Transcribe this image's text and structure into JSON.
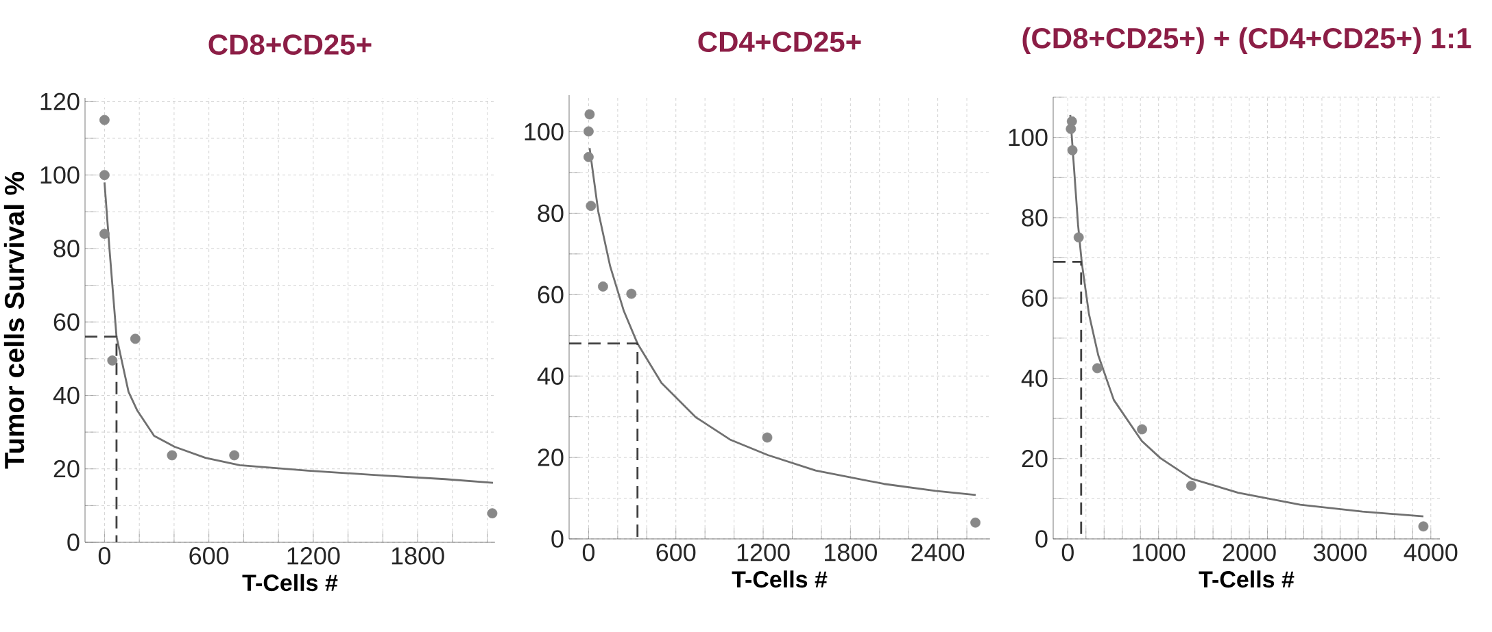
{
  "chart_data": [
    {
      "type": "scatter",
      "title": "CD8+CD25+",
      "xlabel": "T-Cells #",
      "ylabel": "Tumor cells Survival %",
      "xlim": [
        -112,
        2245
      ],
      "ylim": [
        0,
        121
      ],
      "grid": true,
      "xticks": [
        0,
        {
          "value": 200,
          "label": null
        },
        {
          "value": 400,
          "label": null
        },
        600,
        {
          "value": 800,
          "label": null
        },
        {
          "value": 1000,
          "label": null
        },
        1200,
        {
          "value": 1400,
          "label": null
        },
        {
          "value": 1600,
          "label": null
        },
        1800,
        {
          "value": 2000,
          "label": null
        },
        {
          "value": 2200,
          "label": null
        }
      ],
      "yticks": [
        0,
        {
          "value": 10,
          "label": null
        },
        20,
        {
          "value": 30,
          "label": null
        },
        40,
        {
          "value": 50,
          "label": null
        },
        60,
        {
          "value": 70,
          "label": null
        },
        80,
        {
          "value": 90,
          "label": null
        },
        100,
        {
          "value": 110,
          "label": null
        },
        120
      ],
      "series": [
        {
          "marker": "circle",
          "color": "#888888",
          "x": [
            0,
            0,
            0,
            45,
            177,
            388,
            746,
            2229
          ],
          "values": [
            115,
            100,
            84,
            49.5,
            55.4,
            23.7,
            23.7,
            7.9
          ]
        },
        {
          "type": "line",
          "marker": "none",
          "color": "#707070",
          "x": [
            0,
            30,
            69,
            138,
            187,
            285,
            403,
            580,
            777,
            1170,
            1564,
            1957,
            2233
          ],
          "values": [
            98,
            79,
            56,
            41,
            36,
            29,
            26,
            23,
            21,
            19.5,
            18.3,
            17.2,
            16.2
          ]
        },
        {
          "type": "line",
          "marker": "none",
          "line_style": "dashed",
          "color": "#404040",
          "x": [
            -112,
            69,
            69
          ],
          "values": [
            56,
            56,
            0
          ]
        }
      ]
    },
    {
      "type": "scatter",
      "title": "CD4+CD25+",
      "xlabel": "T-Cells #",
      "xlim": [
        -134,
        2760
      ],
      "ylim": [
        0,
        109
      ],
      "grid": true,
      "xticks": [
        0,
        {
          "value": 200,
          "label": null
        },
        {
          "value": 400,
          "label": null
        },
        600,
        {
          "value": 800,
          "label": null
        },
        {
          "value": 1000,
          "label": null
        },
        1200,
        {
          "value": 1400,
          "label": null
        },
        {
          "value": 1600,
          "label": null
        },
        1800,
        {
          "value": 2000,
          "label": null
        },
        {
          "value": 2200,
          "label": null
        },
        2400,
        {
          "value": 2600,
          "label": null
        }
      ],
      "yticks": [
        0,
        {
          "value": 10,
          "label": null
        },
        20,
        {
          "value": 30,
          "label": null
        },
        40,
        {
          "value": 50,
          "label": null
        },
        60,
        {
          "value": 70,
          "label": null
        },
        80,
        {
          "value": 90,
          "label": null
        },
        100
      ],
      "series": [
        {
          "marker": "circle",
          "color": "#888888",
          "x": [
            7,
            0,
            0,
            16,
            99,
            294,
            1228,
            2659
          ],
          "values": [
            104.3,
            100.1,
            93.8,
            81.8,
            62,
            60.2,
            24.9,
            4
          ]
        },
        {
          "type": "line",
          "marker": "none",
          "color": "#707070",
          "x": [
            7,
            66,
            148,
            242,
            336,
            501,
            736,
            972,
            1231,
            1560,
            2031,
            2384,
            2661
          ],
          "values": [
            96,
            80.5,
            67,
            56,
            48,
            38.3,
            29.9,
            24.4,
            20.6,
            16.8,
            13.5,
            11.8,
            10.8
          ]
        },
        {
          "type": "line",
          "marker": "none",
          "line_style": "dashed",
          "color": "#404040",
          "x": [
            -134,
            336,
            336
          ],
          "values": [
            48,
            48,
            0
          ]
        }
      ]
    },
    {
      "type": "scatter",
      "title": "(CD8+CD25+) + (CD4+CD25+) 1:1",
      "xlabel": "T-Cells #",
      "xlim": [
        -161,
        4100
      ],
      "ylim": [
        0,
        110
      ],
      "grid": true,
      "xticks": [
        0,
        {
          "value": 200,
          "label": null
        },
        {
          "value": 400,
          "label": null
        },
        {
          "value": 600,
          "label": null
        },
        {
          "value": 800,
          "label": null
        },
        1000,
        {
          "value": 1200,
          "label": null
        },
        {
          "value": 1400,
          "label": null
        },
        {
          "value": 1600,
          "label": null
        },
        {
          "value": 1800,
          "label": null
        },
        2000,
        {
          "value": 2200,
          "label": null
        },
        {
          "value": 2400,
          "label": null
        },
        {
          "value": 2600,
          "label": null
        },
        {
          "value": 2800,
          "label": null
        },
        3000,
        {
          "value": 3200,
          "label": null
        },
        {
          "value": 3400,
          "label": null
        },
        {
          "value": 3600,
          "label": null
        },
        {
          "value": 3800,
          "label": null
        },
        4000
      ],
      "yticks": [
        0,
        {
          "value": 10,
          "label": null
        },
        20,
        {
          "value": 30,
          "label": null
        },
        40,
        {
          "value": 50,
          "label": null
        },
        60,
        {
          "value": 70,
          "label": null
        },
        80,
        {
          "value": 90,
          "label": null
        },
        100,
        {
          "value": 110,
          "label": null
        }
      ],
      "series": [
        {
          "marker": "circle",
          "color": "#888888",
          "x": [
            45,
            34,
            51,
            120,
            325,
            818,
            1360,
            3918
          ],
          "values": [
            104,
            102.1,
            96.8,
            75.1,
            42.5,
            27.3,
            13.2,
            3.1
          ]
        },
        {
          "type": "line",
          "marker": "none",
          "color": "#707070",
          "x": [
            27,
            62,
            113,
            154,
            233,
            336,
            507,
            815,
            1021,
            1363,
            1877,
            2562,
            3247,
            3918
          ],
          "values": [
            105.6,
            94.4,
            78.2,
            68.8,
            56,
            45.7,
            34.6,
            24.4,
            20.1,
            15,
            11.5,
            8.5,
            6.8,
            5.6
          ]
        },
        {
          "type": "line",
          "marker": "none",
          "line_style": "dashed",
          "color": "#404040",
          "x": [
            -161,
            147,
            147
          ],
          "values": [
            69,
            69,
            0
          ]
        }
      ]
    }
  ]
}
